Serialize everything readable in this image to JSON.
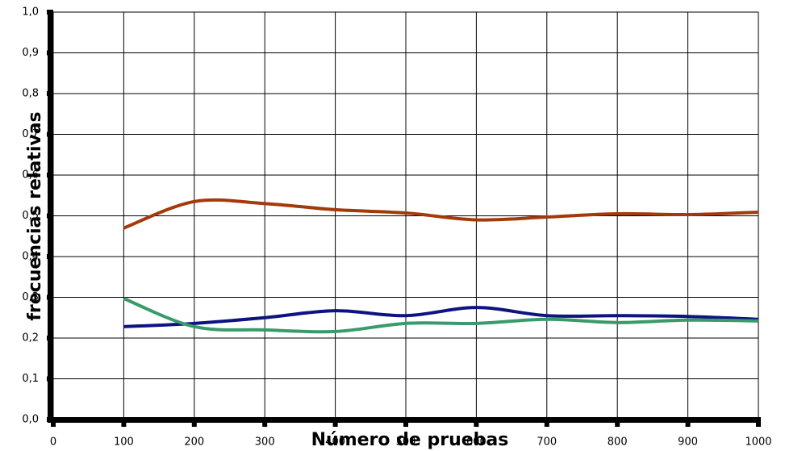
{
  "chart_data": {
    "type": "line",
    "x_label": "Número de pruebas",
    "y_label": "frecuencias relativas",
    "x": [
      100,
      200,
      300,
      400,
      500,
      600,
      700,
      800,
      900,
      1000
    ],
    "series": [
      {
        "color": "#a33a0c",
        "values": [
          0.47,
          0.535,
          0.53,
          0.515,
          0.507,
          0.49,
          0.497,
          0.505,
          0.503,
          0.509
        ]
      },
      {
        "color": "#0d1480",
        "values": [
          0.228,
          0.236,
          0.25,
          0.267,
          0.255,
          0.275,
          0.255,
          0.255,
          0.253,
          0.246
        ]
      },
      {
        "color": "#3a9a6a",
        "values": [
          0.297,
          0.228,
          0.22,
          0.216,
          0.236,
          0.236,
          0.246,
          0.238,
          0.244,
          0.242
        ]
      }
    ],
    "xlim": [
      0,
      1000
    ],
    "xticks": [
      0,
      100,
      200,
      300,
      400,
      500,
      600,
      700,
      800,
      900,
      1000
    ],
    "ylim": [
      0,
      1.0
    ],
    "yticks": [
      {
        "value": 0,
        "label": "0,0"
      },
      {
        "value": 0.1,
        "label": "0,1"
      },
      {
        "value": 0.2,
        "label": "0,2"
      },
      {
        "value": 0.3,
        "label": "0,3"
      },
      {
        "value": 0.4,
        "label": "0,4"
      },
      {
        "value": 0.5,
        "label": "0,5"
      },
      {
        "value": 0.6,
        "label": "0,6"
      },
      {
        "value": 0.7,
        "label": "0,7"
      },
      {
        "value": 0.8,
        "label": "0,8"
      },
      {
        "value": 0.9,
        "label": "0,9"
      },
      {
        "value": 1.0,
        "label": "1,0"
      }
    ],
    "grid": true
  }
}
